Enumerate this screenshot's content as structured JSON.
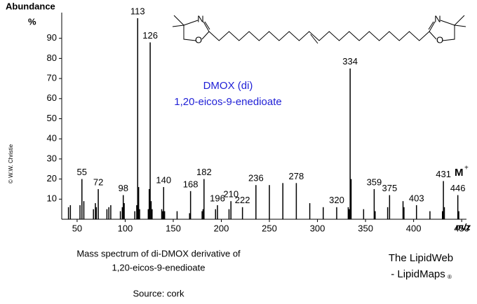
{
  "chart_data": {
    "type": "bar",
    "y_label": "Abundance",
    "y_unit": "%",
    "x_label": "m/z",
    "xlim": [
      34,
      455
    ],
    "ylim": [
      0,
      100
    ],
    "xticks": [
      50,
      100,
      150,
      200,
      250,
      300,
      350,
      400,
      450
    ],
    "yticks": [
      10,
      20,
      30,
      40,
      50,
      60,
      70,
      80,
      90
    ],
    "series": [
      {
        "show_labels": true,
        "color": "#000000",
        "x": [
          55,
          72,
          98,
          113,
          126,
          140,
          168,
          182,
          196,
          210,
          222,
          236,
          278,
          320,
          334,
          359,
          375,
          403,
          431,
          446
        ],
        "values": [
          20,
          15,
          12,
          100,
          88,
          16,
          14,
          20,
          7,
          9,
          6,
          17,
          18,
          6,
          75,
          15,
          12,
          7,
          19,
          12
        ]
      },
      {
        "show_labels": false,
        "color": "#000000",
        "x": [
          41,
          43,
          53,
          57,
          67,
          69,
          70,
          81,
          83,
          85,
          95,
          97,
          99,
          110,
          112,
          114,
          115,
          124,
          125,
          127,
          128,
          138,
          139,
          141,
          154,
          167,
          180,
          181,
          194,
          208,
          250,
          264,
          292,
          306,
          332,
          333,
          335,
          348,
          360,
          373,
          389,
          390,
          417,
          430,
          432,
          447
        ],
        "values": [
          6,
          7,
          7,
          9,
          5,
          8,
          6,
          5,
          6,
          7,
          4,
          6,
          8,
          4,
          7,
          16,
          5,
          5,
          15,
          9,
          5,
          5,
          4,
          4,
          4,
          3,
          4,
          5,
          5,
          5,
          17,
          18,
          8,
          6,
          6,
          5,
          20,
          5,
          4,
          6,
          9,
          6,
          4,
          4,
          6,
          4
        ]
      }
    ],
    "molecular_ion": {
      "label": "M",
      "charge": "+"
    },
    "annotations": [
      "DMOX (di)",
      "1,20-eicos-9-enedioate"
    ],
    "structure_atoms": [
      "N",
      "O",
      "N",
      "O"
    ],
    "copyright": "© W.W. Christie",
    "caption": [
      "Mass spectrum of di-DMOX derivative of",
      "1,20-eicos-9-enedioate",
      "Source: cork"
    ],
    "credit": [
      "The LipidWeb",
      "- LipidMaps",
      "®"
    ]
  }
}
